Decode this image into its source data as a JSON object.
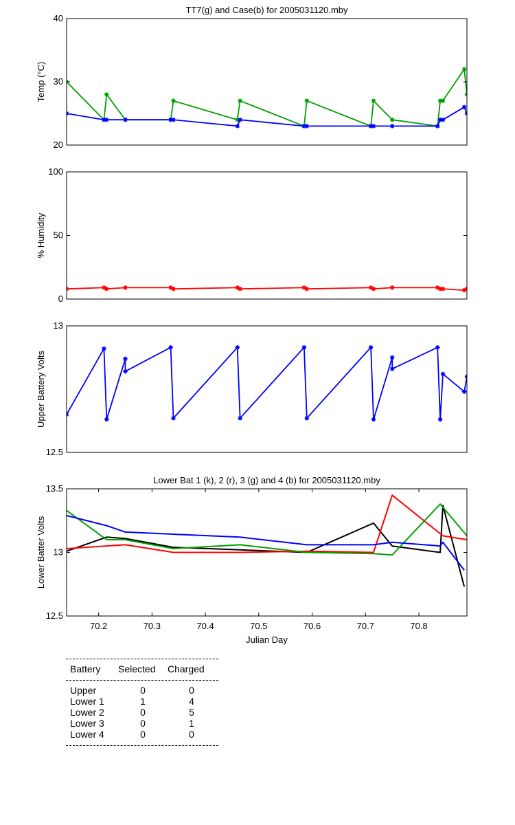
{
  "chart_data": [
    {
      "type": "line",
      "id": "temp",
      "title": "TT7(g) and Case(b) for 2005031120.mby",
      "xlabel": "",
      "ylabel": "Temp  (°C)",
      "xlim": [
        70.14,
        70.89
      ],
      "ylim": [
        20,
        40
      ],
      "yticks": [
        20,
        30,
        40
      ],
      "xticks": [],
      "markers": true,
      "series": [
        {
          "color": "#00a000",
          "x": [
            70.14,
            70.21,
            70.215,
            70.25,
            70.335,
            70.34,
            70.46,
            70.465,
            70.585,
            70.59,
            70.71,
            70.715,
            70.75,
            70.835,
            70.84,
            70.845,
            70.885,
            70.89
          ],
          "y": [
            30,
            24,
            28,
            24,
            24,
            27,
            24,
            27,
            23,
            27,
            23,
            27,
            24,
            23,
            27,
            27,
            32,
            28
          ]
        },
        {
          "color": "#0000ff",
          "x": [
            70.14,
            70.21,
            70.215,
            70.25,
            70.335,
            70.34,
            70.46,
            70.465,
            70.585,
            70.59,
            70.71,
            70.715,
            70.75,
            70.835,
            70.84,
            70.845,
            70.885,
            70.89
          ],
          "y": [
            25,
            24,
            24,
            24,
            24,
            24,
            23,
            24,
            23,
            23,
            23,
            23,
            23,
            23,
            24,
            24,
            26,
            25
          ]
        }
      ]
    },
    {
      "type": "line",
      "id": "humidity",
      "title": "",
      "xlabel": "",
      "ylabel": "% Humidity",
      "xlim": [
        70.14,
        70.89
      ],
      "ylim": [
        0,
        100
      ],
      "yticks": [
        0,
        50,
        100
      ],
      "xticks": [],
      "markers": true,
      "series": [
        {
          "color": "#ff0000",
          "x": [
            70.14,
            70.21,
            70.215,
            70.25,
            70.335,
            70.34,
            70.46,
            70.465,
            70.585,
            70.59,
            70.71,
            70.715,
            70.75,
            70.835,
            70.84,
            70.845,
            70.885,
            70.89
          ],
          "y": [
            8,
            9,
            8,
            9,
            9,
            8,
            9,
            8,
            9,
            8,
            9,
            8,
            9,
            9,
            8,
            8,
            7,
            8
          ]
        }
      ]
    },
    {
      "type": "line",
      "id": "upper-battery",
      "title": "",
      "xlabel": "",
      "ylabel": "Upper Battery Volts",
      "xlim": [
        70.14,
        70.89
      ],
      "ylim": [
        12.5,
        13
      ],
      "yticks": [
        12.5,
        13
      ],
      "xticks": [],
      "markers": true,
      "series": [
        {
          "color": "#0000ff",
          "x": [
            70.14,
            70.21,
            70.215,
            70.25,
            70.25,
            70.335,
            70.34,
            70.46,
            70.465,
            70.585,
            70.59,
            70.71,
            70.715,
            70.75,
            70.75,
            70.835,
            70.84,
            70.845,
            70.885,
            70.89
          ],
          "y": [
            12.65,
            12.91,
            12.63,
            12.87,
            12.82,
            12.915,
            12.635,
            12.915,
            12.635,
            12.915,
            12.635,
            12.915,
            12.63,
            12.875,
            12.83,
            12.915,
            12.63,
            12.81,
            12.74,
            12.8
          ]
        }
      ]
    },
    {
      "type": "line",
      "id": "lower-battery",
      "title": "Lower Bat 1 (k), 2 (r), 3 (g) and 4 (b) for 2005031120.mby",
      "xlabel": "Julian Day",
      "ylabel": "Lower Batter Volts",
      "xlim": [
        70.14,
        70.89
      ],
      "ylim": [
        12.5,
        13.5
      ],
      "yticks": [
        12.5,
        13,
        13.5
      ],
      "xticks": [
        70.2,
        70.3,
        70.4,
        70.5,
        70.6,
        70.7,
        70.8
      ],
      "markers": false,
      "series": [
        {
          "name": "Lower Bat 1",
          "color": "#000000",
          "x": [
            70.14,
            70.215,
            70.25,
            70.34,
            70.465,
            70.59,
            70.715,
            70.75,
            70.84,
            70.845,
            70.885
          ],
          "y": [
            13.01,
            13.12,
            13.11,
            13.04,
            13.02,
            13.0,
            13.23,
            13.05,
            13.0,
            13.37,
            12.73
          ]
        },
        {
          "name": "Lower Bat 2",
          "color": "#ff0000",
          "x": [
            70.14,
            70.25,
            70.34,
            70.465,
            70.59,
            70.715,
            70.75,
            70.845,
            70.89
          ],
          "y": [
            13.03,
            13.06,
            13.0,
            13.0,
            13.01,
            13.0,
            13.45,
            13.13,
            13.1
          ]
        },
        {
          "name": "Lower Bat 3",
          "color": "#00a000",
          "x": [
            70.14,
            70.215,
            70.25,
            70.34,
            70.465,
            70.59,
            70.715,
            70.75,
            70.84,
            70.89
          ],
          "y": [
            13.33,
            13.1,
            13.1,
            13.03,
            13.06,
            13.0,
            12.99,
            12.98,
            13.38,
            13.13
          ]
        },
        {
          "name": "Lower Bat 4",
          "color": "#0000ff",
          "x": [
            70.14,
            70.215,
            70.25,
            70.465,
            70.59,
            70.715,
            70.75,
            70.84,
            70.845,
            70.885
          ],
          "y": [
            13.29,
            13.21,
            13.16,
            13.12,
            13.06,
            13.06,
            13.08,
            13.05,
            13.08,
            12.86
          ]
        }
      ]
    }
  ],
  "table": {
    "headers": [
      "Battery",
      "Selected",
      "Charged"
    ],
    "rows": [
      [
        "Upper",
        "0",
        "0"
      ],
      [
        "Lower 1",
        "1",
        "4"
      ],
      [
        "Lower 2",
        "0",
        "5"
      ],
      [
        "Lower 3",
        "0",
        "1"
      ],
      [
        "Lower 4",
        "0",
        "0"
      ]
    ]
  }
}
